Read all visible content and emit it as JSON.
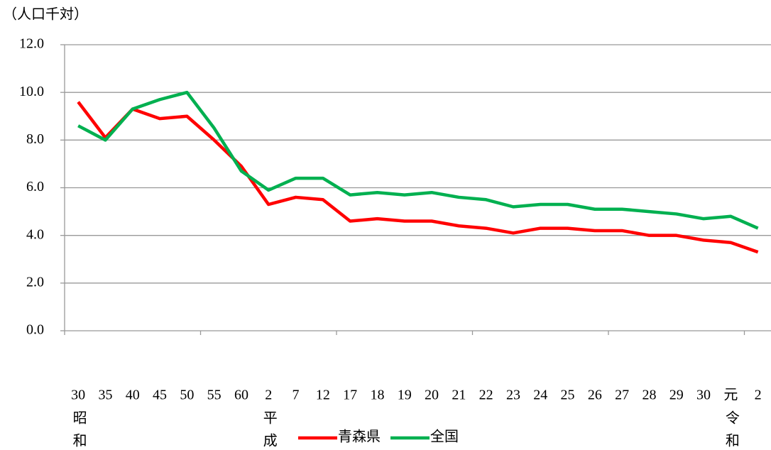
{
  "chart_data": {
    "type": "line",
    "y_axis_label": "（人口千対）",
    "categories": [
      "30",
      "35",
      "40",
      "45",
      "50",
      "55",
      "60",
      "2",
      "7",
      "12",
      "17",
      "18",
      "19",
      "20",
      "21",
      "22",
      "23",
      "24",
      "25",
      "26",
      "27",
      "28",
      "29",
      "30",
      "元",
      "2"
    ],
    "category_sublabels": [
      "昭和",
      null,
      null,
      null,
      null,
      null,
      null,
      "平成",
      null,
      null,
      null,
      null,
      null,
      null,
      null,
      null,
      null,
      null,
      null,
      null,
      null,
      null,
      null,
      null,
      "令和",
      null
    ],
    "series": [
      {
        "name": "青森県",
        "color": "#ff0000",
        "values": [
          9.6,
          8.1,
          9.3,
          8.9,
          9.0,
          8.0,
          6.9,
          5.3,
          5.6,
          5.5,
          4.6,
          4.7,
          4.6,
          4.6,
          4.4,
          4.3,
          4.1,
          4.3,
          4.3,
          4.2,
          4.2,
          4.0,
          4.0,
          3.8,
          3.7,
          3.3
        ]
      },
      {
        "name": "全国",
        "color": "#00b050",
        "values": [
          8.6,
          8.0,
          9.3,
          9.7,
          10.0,
          8.5,
          6.7,
          5.9,
          6.4,
          6.4,
          5.7,
          5.8,
          5.7,
          5.8,
          5.6,
          5.5,
          5.2,
          5.3,
          5.3,
          5.1,
          5.1,
          5.0,
          4.9,
          4.7,
          4.8,
          4.3
        ]
      }
    ],
    "ylim": [
      0,
      12
    ],
    "yticks": [
      {
        "value": 0,
        "label": "0.0"
      },
      {
        "value": 2,
        "label": "2.0"
      },
      {
        "value": 4,
        "label": "4.0"
      },
      {
        "value": 6,
        "label": "6.0"
      },
      {
        "value": 8,
        "label": "8.0"
      },
      {
        "value": 10,
        "label": "10.0"
      },
      {
        "value": 12,
        "label": "12.0"
      }
    ],
    "grid": true,
    "legend": "bottom"
  }
}
